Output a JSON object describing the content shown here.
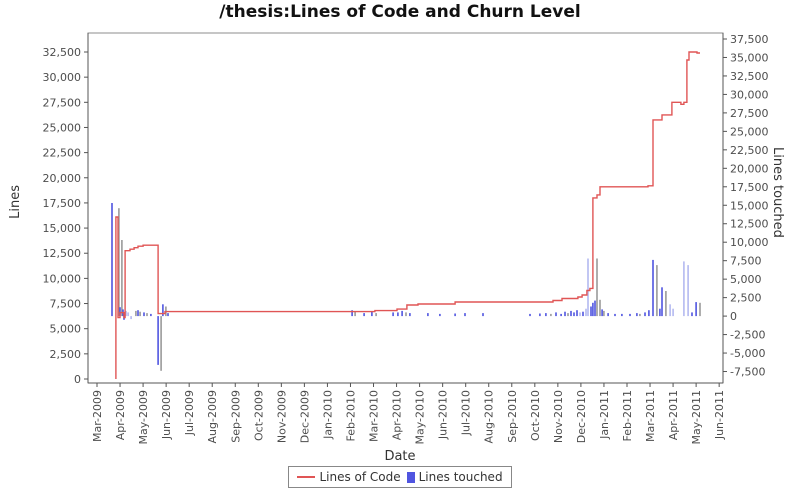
{
  "chart_data": {
    "type": "line+bar",
    "title": "/thesis:Lines of Code and Churn Level",
    "x_axis": {
      "label": "Date",
      "tick_labels": [
        "Mar-2009",
        "Apr-2009",
        "May-2009",
        "Jun-2009",
        "Jul-2009",
        "Aug-2009",
        "Sep-2009",
        "Oct-2009",
        "Nov-2009",
        "Dec-2009",
        "Jan-2010",
        "Feb-2010",
        "Mar-2010",
        "Apr-2010",
        "May-2010",
        "Jun-2010",
        "Jul-2010",
        "Aug-2010",
        "Sep-2010",
        "Oct-2010",
        "Nov-2010",
        "Dec-2010",
        "Jan-2011",
        "Feb-2011",
        "Mar-2011",
        "Apr-2011",
        "May-2011",
        "Jun-2011"
      ]
    },
    "y_left": {
      "label": "Lines",
      "min": 0,
      "max": 32500,
      "ticks": [
        [
          0,
          "0"
        ],
        [
          2500,
          "2,500"
        ],
        [
          5000,
          "5,000"
        ],
        [
          7500,
          "7,500"
        ],
        [
          10000,
          "10,000"
        ],
        [
          12500,
          "12,500"
        ],
        [
          15000,
          "15,000"
        ],
        [
          17500,
          "17,500"
        ],
        [
          20000,
          "20,000"
        ],
        [
          22500,
          "22,500"
        ],
        [
          25000,
          "25,000"
        ],
        [
          27500,
          "27,500"
        ],
        [
          30000,
          "30,000"
        ],
        [
          32500,
          "32,500"
        ]
      ]
    },
    "y_right": {
      "label": "Lines touched",
      "min": -7500,
      "max": 37500,
      "ticks": [
        [
          -7500,
          "-7,500"
        ],
        [
          -5000,
          "-5,000"
        ],
        [
          -2500,
          "-2,500"
        ],
        [
          0,
          "0"
        ],
        [
          2500,
          "2,500"
        ],
        [
          5000,
          "5,000"
        ],
        [
          7500,
          "7,500"
        ],
        [
          10000,
          "10,000"
        ],
        [
          12500,
          "12,500"
        ],
        [
          15000,
          "15,000"
        ],
        [
          17500,
          "17,500"
        ],
        [
          20000,
          "20,000"
        ],
        [
          22500,
          "22,500"
        ],
        [
          25000,
          "25,000"
        ],
        [
          27500,
          "27,500"
        ],
        [
          30000,
          "30,000"
        ],
        [
          32500,
          "32,500"
        ],
        [
          35000,
          "35,000"
        ],
        [
          37500,
          "37,500"
        ]
      ]
    },
    "colors": {
      "line": "#e05555",
      "bar_blue": "#5055e0",
      "bar_gray": "#9a9a9a",
      "bar_pale": "#b4b9f0",
      "plot_border": "#8c8c8c",
      "axis_line": "#545454"
    },
    "series": [
      {
        "name": "Lines of Code",
        "type": "step-line",
        "axis": "left",
        "points": [
          [
            0.82,
            0
          ],
          [
            0.82,
            16100
          ],
          [
            0.91,
            16100
          ],
          [
            0.91,
            6100
          ],
          [
            1.0,
            6100
          ],
          [
            1.0,
            6600
          ],
          [
            1.17,
            6600
          ],
          [
            1.17,
            6100
          ],
          [
            1.22,
            6100
          ],
          [
            1.22,
            12750
          ],
          [
            1.43,
            12750
          ],
          [
            1.43,
            12900
          ],
          [
            1.61,
            12900
          ],
          [
            1.61,
            13050
          ],
          [
            1.78,
            13050
          ],
          [
            1.78,
            13200
          ],
          [
            2.0,
            13200
          ],
          [
            2.0,
            13300
          ],
          [
            2.65,
            13300
          ],
          [
            2.65,
            6500
          ],
          [
            2.95,
            6500
          ],
          [
            2.95,
            6700
          ],
          [
            12.06,
            6700
          ],
          [
            12.06,
            6800
          ],
          [
            13.02,
            6800
          ],
          [
            13.02,
            6950
          ],
          [
            13.45,
            6950
          ],
          [
            13.45,
            7350
          ],
          [
            13.93,
            7350
          ],
          [
            13.93,
            7450
          ],
          [
            15.54,
            7450
          ],
          [
            15.54,
            7650
          ],
          [
            19.79,
            7650
          ],
          [
            19.79,
            7800
          ],
          [
            20.18,
            7800
          ],
          [
            20.18,
            8000
          ],
          [
            20.87,
            8000
          ],
          [
            20.87,
            8150
          ],
          [
            21.05,
            8150
          ],
          [
            21.05,
            8350
          ],
          [
            21.26,
            8350
          ],
          [
            21.26,
            8800
          ],
          [
            21.39,
            8800
          ],
          [
            21.39,
            9000
          ],
          [
            21.52,
            9000
          ],
          [
            21.52,
            18000
          ],
          [
            21.7,
            18000
          ],
          [
            21.7,
            18300
          ],
          [
            21.83,
            18300
          ],
          [
            21.83,
            19100
          ],
          [
            23.91,
            19100
          ],
          [
            23.91,
            19200
          ],
          [
            24.13,
            19200
          ],
          [
            24.13,
            25750
          ],
          [
            24.52,
            25750
          ],
          [
            24.52,
            26250
          ],
          [
            24.95,
            26250
          ],
          [
            24.95,
            27500
          ],
          [
            25.34,
            27500
          ],
          [
            25.34,
            27300
          ],
          [
            25.47,
            27300
          ],
          [
            25.47,
            27500
          ],
          [
            25.6,
            27500
          ],
          [
            25.6,
            31700
          ],
          [
            25.69,
            31700
          ],
          [
            25.69,
            32500
          ],
          [
            26.04,
            32500
          ],
          [
            26.04,
            32400
          ],
          [
            26.17,
            32400
          ]
        ]
      },
      {
        "name": "Lines touched",
        "type": "bar",
        "axis": "right",
        "bars": [
          [
            0.65,
            15300,
            "b"
          ],
          [
            0.95,
            14600,
            "g"
          ],
          [
            1.0,
            1200,
            "b"
          ],
          [
            1.08,
            10300,
            "g"
          ],
          [
            1.13,
            900,
            "b"
          ],
          [
            1.17,
            -500,
            "b"
          ],
          [
            1.26,
            700,
            "p"
          ],
          [
            1.35,
            500,
            "p"
          ],
          [
            1.48,
            -400,
            "p"
          ],
          [
            1.69,
            700,
            "g"
          ],
          [
            1.78,
            800,
            "b"
          ],
          [
            1.87,
            600,
            "g"
          ],
          [
            2.04,
            500,
            "b"
          ],
          [
            2.17,
            400,
            "g"
          ],
          [
            2.34,
            300,
            "b"
          ],
          [
            2.65,
            -6600,
            "b"
          ],
          [
            2.78,
            -7400,
            "g"
          ],
          [
            2.86,
            1600,
            "b"
          ],
          [
            2.99,
            1300,
            "g"
          ],
          [
            3.08,
            400,
            "b"
          ],
          [
            11.07,
            800,
            "b"
          ],
          [
            11.2,
            600,
            "g"
          ],
          [
            11.59,
            400,
            "b"
          ],
          [
            11.93,
            600,
            "b"
          ],
          [
            12.11,
            400,
            "g"
          ],
          [
            12.85,
            500,
            "b"
          ],
          [
            13.06,
            500,
            "b"
          ],
          [
            13.24,
            700,
            "b"
          ],
          [
            13.41,
            500,
            "g"
          ],
          [
            13.58,
            400,
            "b"
          ],
          [
            14.36,
            400,
            "b"
          ],
          [
            14.88,
            300,
            "b"
          ],
          [
            15.54,
            350,
            "b"
          ],
          [
            15.97,
            400,
            "b"
          ],
          [
            16.75,
            400,
            "b"
          ],
          [
            18.79,
            300,
            "b"
          ],
          [
            19.22,
            350,
            "b"
          ],
          [
            19.48,
            400,
            "b"
          ],
          [
            19.7,
            300,
            "g"
          ],
          [
            19.92,
            500,
            "b"
          ],
          [
            20.14,
            300,
            "b"
          ],
          [
            20.31,
            600,
            "b"
          ],
          [
            20.44,
            400,
            "g"
          ],
          [
            20.57,
            700,
            "b"
          ],
          [
            20.7,
            500,
            "b"
          ],
          [
            20.83,
            800,
            "b"
          ],
          [
            20.96,
            500,
            "p"
          ],
          [
            21.09,
            600,
            "b"
          ],
          [
            21.22,
            1000,
            "p"
          ],
          [
            21.31,
            7800,
            "p"
          ],
          [
            21.44,
            1300,
            "b"
          ],
          [
            21.52,
            1800,
            "b"
          ],
          [
            21.61,
            2100,
            "b"
          ],
          [
            21.7,
            7800,
            "g"
          ],
          [
            21.83,
            2200,
            "g"
          ],
          [
            21.92,
            900,
            "b"
          ],
          [
            22.0,
            700,
            "g"
          ],
          [
            22.18,
            400,
            "b"
          ],
          [
            22.48,
            300,
            "b"
          ],
          [
            22.78,
            300,
            "b"
          ],
          [
            23.13,
            300,
            "b"
          ],
          [
            23.43,
            400,
            "b"
          ],
          [
            23.56,
            300,
            "g"
          ],
          [
            23.78,
            500,
            "b"
          ],
          [
            23.95,
            800,
            "b"
          ],
          [
            24.13,
            7600,
            "b"
          ],
          [
            24.3,
            6900,
            "g"
          ],
          [
            24.43,
            1000,
            "b"
          ],
          [
            24.52,
            3900,
            "b"
          ],
          [
            24.69,
            3400,
            "g"
          ],
          [
            24.87,
            1600,
            "p"
          ],
          [
            25.0,
            1000,
            "p"
          ],
          [
            25.47,
            7400,
            "p"
          ],
          [
            25.65,
            6900,
            "p"
          ],
          [
            25.82,
            500,
            "b"
          ],
          [
            26.0,
            1900,
            "b"
          ],
          [
            26.17,
            1800,
            "g"
          ]
        ]
      }
    ],
    "legend": {
      "position": "bottom",
      "items": [
        {
          "label": "Lines of Code",
          "swatch": "red-line"
        },
        {
          "label": "Lines touched",
          "swatch": "blue-box"
        }
      ]
    }
  }
}
